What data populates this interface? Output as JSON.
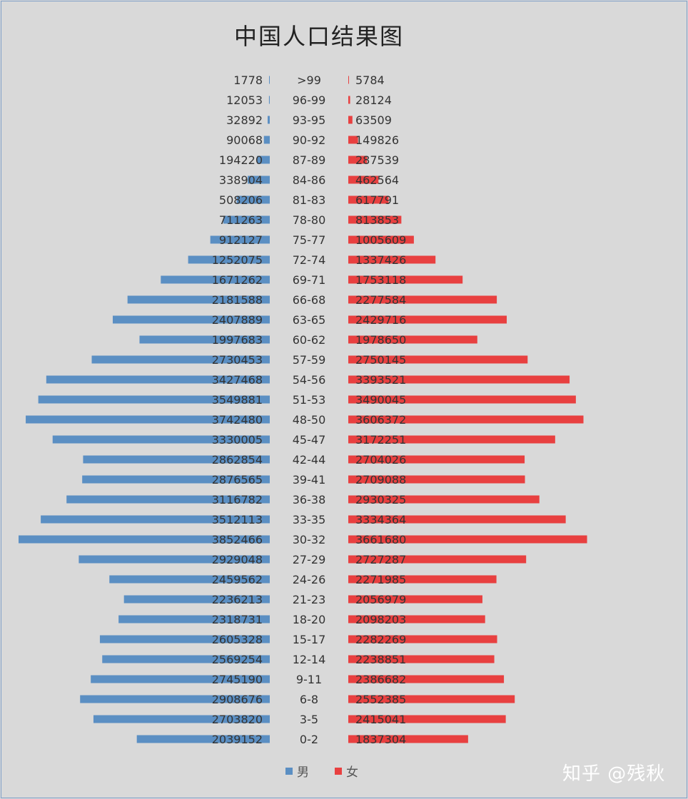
{
  "watermark": "知乎 @残秋",
  "chart_data": {
    "type": "bar",
    "orientation": "horizontal",
    "title": "中国人口结果图",
    "categories": [
      ">99",
      "96-99",
      "93-95",
      "90-92",
      "87-89",
      "84-86",
      "81-83",
      "78-80",
      "75-77",
      "72-74",
      "69-71",
      "66-68",
      "63-65",
      "60-62",
      "57-59",
      "54-56",
      "51-53",
      "48-50",
      "45-47",
      "42-44",
      "39-41",
      "36-38",
      "33-35",
      "30-32",
      "27-29",
      "24-26",
      "21-23",
      "18-20",
      "15-17",
      "12-14",
      "9-11",
      "6-8",
      "3-5",
      "0-2"
    ],
    "series": [
      {
        "name": "男",
        "color": "#5b8fc3",
        "values": [
          1778,
          12053,
          32892,
          90068,
          194220,
          338904,
          508206,
          711263,
          912127,
          1252075,
          1671262,
          2181588,
          2407889,
          1997683,
          2730453,
          3427468,
          3549881,
          3742480,
          3330005,
          2862854,
          2876565,
          3116782,
          3512113,
          3852466,
          2929048,
          2459562,
          2236213,
          2318731,
          2605328,
          2569254,
          2745190,
          2908676,
          2703820,
          2039152
        ]
      },
      {
        "name": "女",
        "color": "#e84040",
        "values": [
          5784,
          28124,
          63509,
          149826,
          287539,
          462564,
          617791,
          813853,
          1005609,
          1337426,
          1753118,
          2277584,
          2429716,
          1978650,
          2750145,
          3393521,
          3490045,
          3606372,
          3172251,
          2704026,
          2709088,
          2930325,
          3334364,
          3661680,
          2727287,
          2271985,
          2056979,
          2098203,
          2282269,
          2238851,
          2386682,
          2552385,
          2415041,
          1837304
        ]
      }
    ],
    "legend": "bottom"
  }
}
